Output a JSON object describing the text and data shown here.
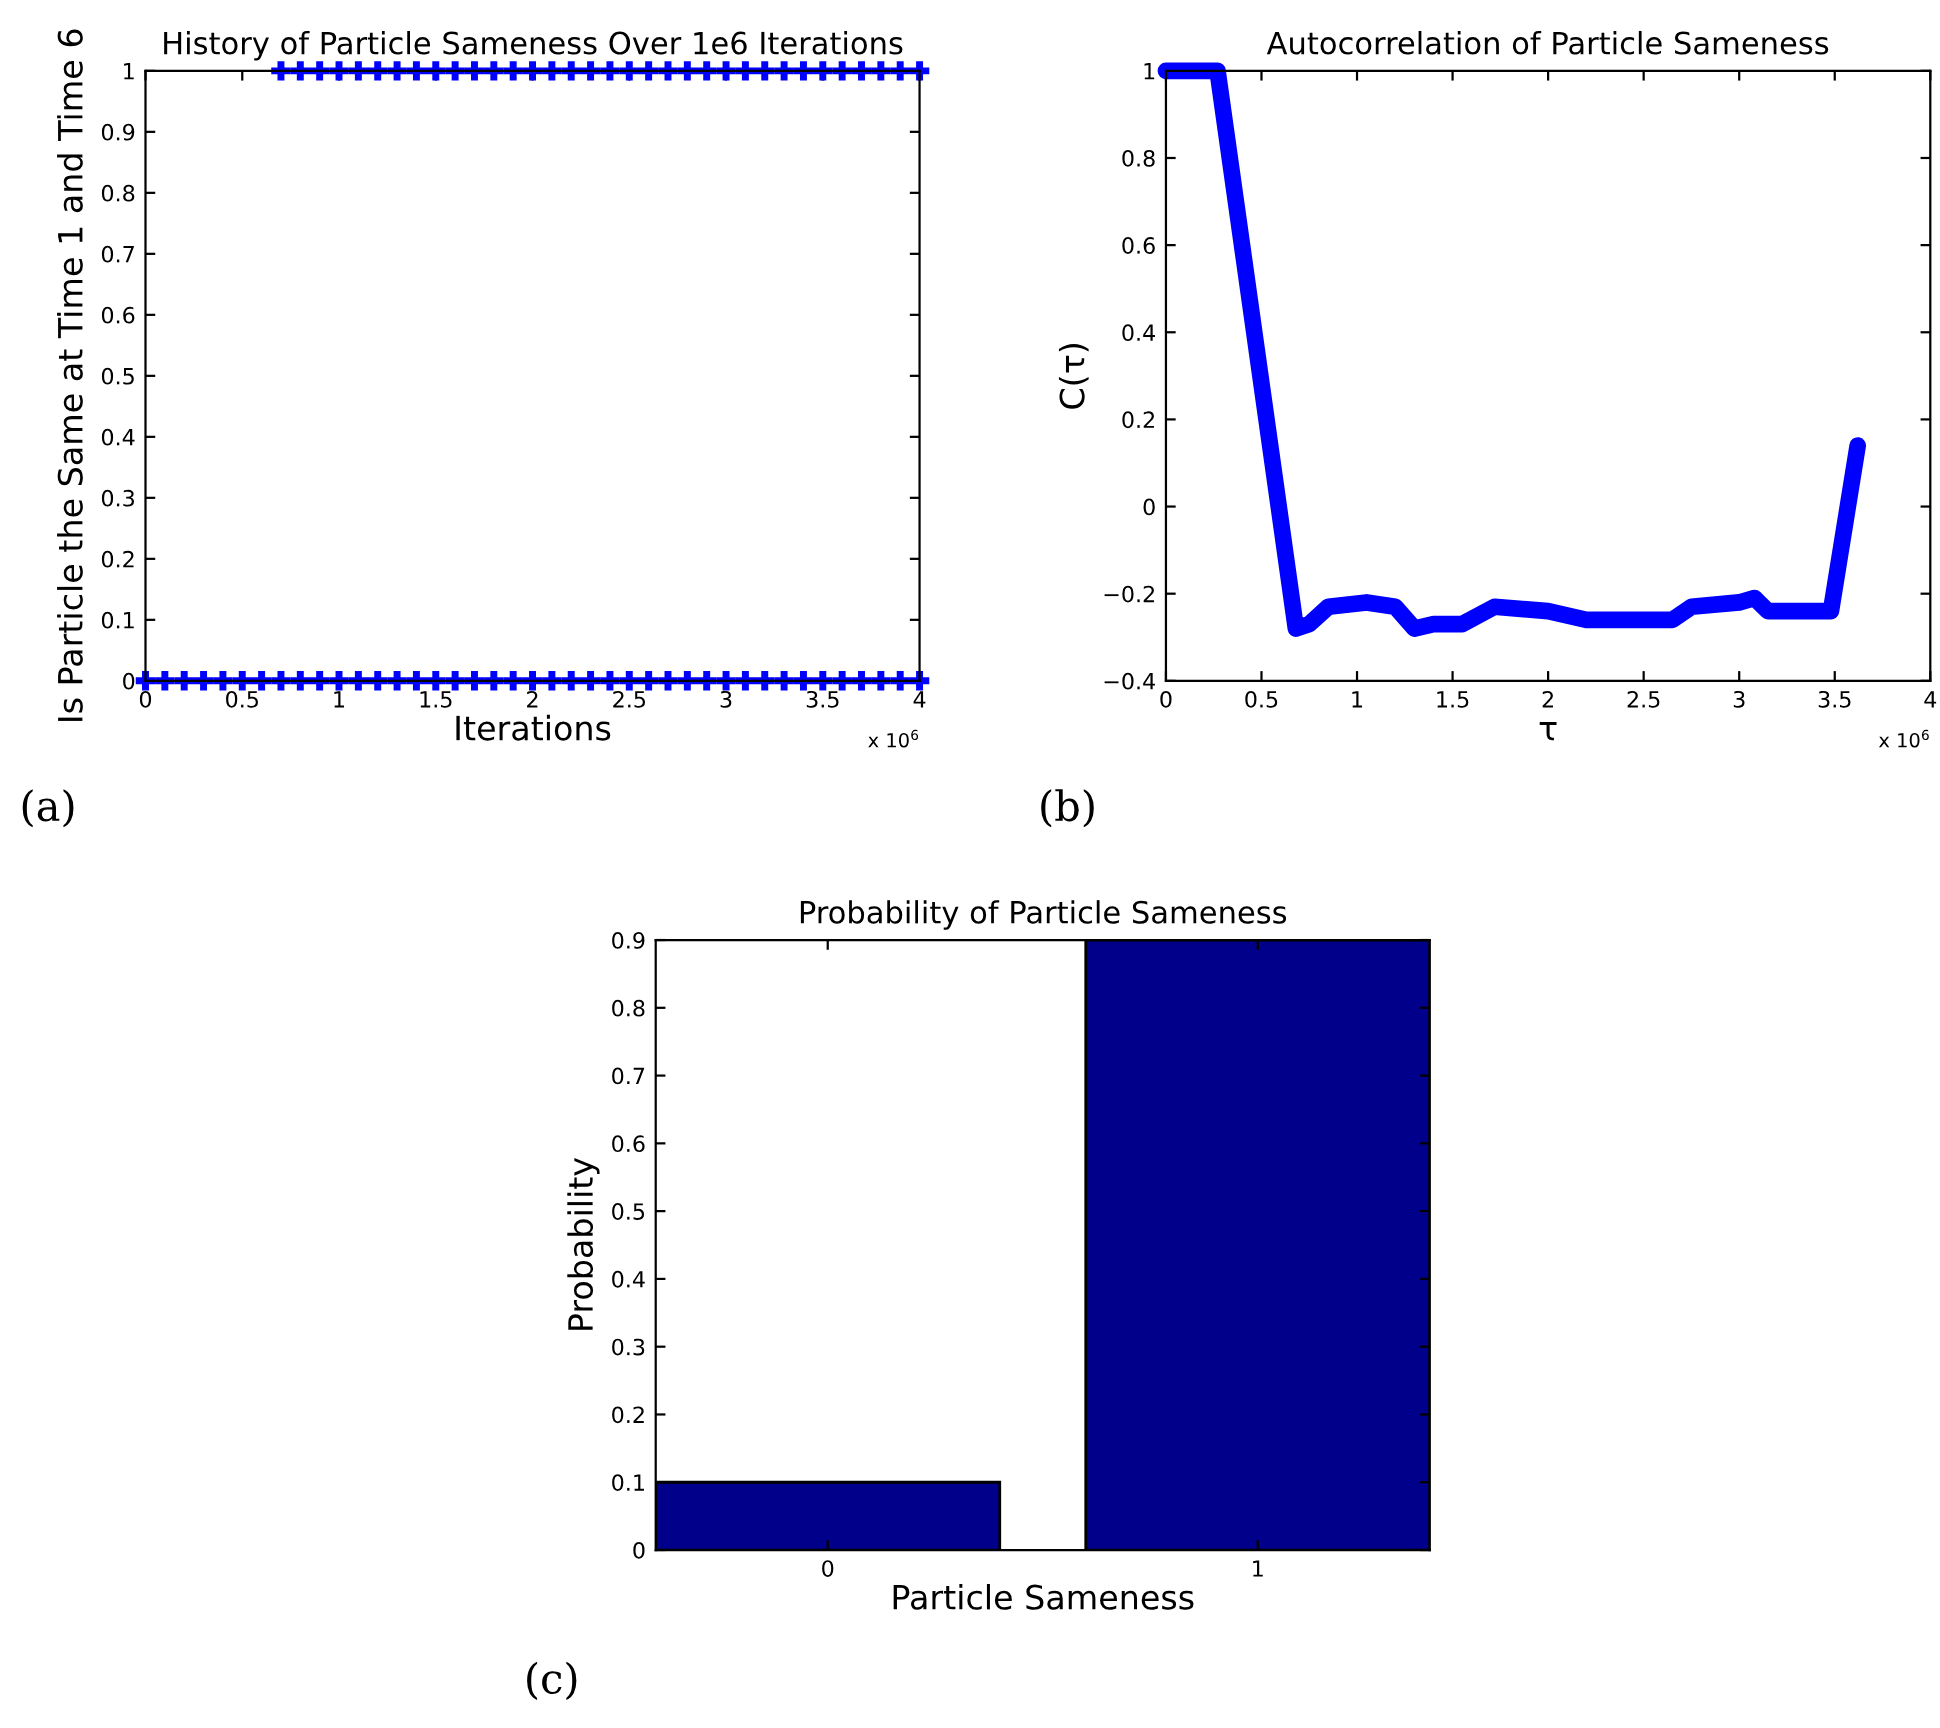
{
  "chart_data": [
    {
      "type": "scatter",
      "title": "History of Particle Sameness Over 1e6 Iterations",
      "xlabel": "Iterations",
      "ylabel": "Is Particle the Same at Time 1 and Time 6",
      "marker": "cross",
      "grid": false,
      "legend": false,
      "xlim": [
        0,
        4
      ],
      "xticks": [
        0,
        0.5,
        1,
        1.5,
        2,
        2.5,
        3,
        3.5,
        4
      ],
      "ylim": [
        0,
        1
      ],
      "yticks": [
        0,
        0.1,
        0.2,
        0.3,
        0.4,
        0.5,
        0.6,
        0.7,
        0.8,
        0.9,
        1
      ],
      "series": [
        {
          "color": "#0000ff",
          "x": [
            0,
            0.1,
            0.2,
            0.3,
            0.4,
            0.5,
            0.6,
            0.7,
            0.8,
            0.9,
            1,
            1.1,
            1.2,
            1.3,
            1.4,
            1.5,
            1.6,
            1.7,
            1.8,
            1.9,
            2,
            2.1,
            2.2,
            2.3,
            2.4,
            2.5,
            2.6,
            2.7,
            2.8,
            2.9,
            3,
            3.1,
            3.2,
            3.3,
            3.4,
            3.5,
            3.6,
            3.7,
            3.8,
            3.9,
            4
          ],
          "values": [
            0,
            0,
            0,
            0,
            0,
            0,
            0,
            0,
            0,
            0,
            0,
            0,
            0,
            0,
            0,
            0,
            0,
            0,
            0,
            0,
            0,
            0,
            0,
            0,
            0,
            0,
            0,
            0,
            0,
            0,
            0,
            0,
            0,
            0,
            0,
            0,
            0,
            0,
            0,
            0,
            0
          ]
        },
        {
          "color": "#0000ff",
          "x": [
            0.7,
            0.8,
            0.9,
            1,
            1.1,
            1.2,
            1.3,
            1.4,
            1.5,
            1.6,
            1.7,
            1.8,
            1.9,
            2,
            2.1,
            2.2,
            2.3,
            2.4,
            2.5,
            2.6,
            2.7,
            2.8,
            2.9,
            3,
            3.1,
            3.2,
            3.3,
            3.4,
            3.5,
            3.6,
            3.7,
            3.8,
            3.9,
            4
          ],
          "values": [
            1,
            1,
            1,
            1,
            1,
            1,
            1,
            1,
            1,
            1,
            1,
            1,
            1,
            1,
            1,
            1,
            1,
            1,
            1,
            1,
            1,
            1,
            1,
            1,
            1,
            1,
            1,
            1,
            1,
            1,
            1,
            1,
            1,
            1
          ]
        }
      ],
      "annotations": [
        "x 10$^{6}$",
        "(a)"
      ]
    },
    {
      "type": "line",
      "title": "Autocorrelation of Particle Sameness",
      "xlabel": "τ",
      "ylabel": "C(τ)",
      "grid": false,
      "legend": false,
      "marker": "none",
      "line_style": "solid",
      "xlim": [
        0,
        4
      ],
      "xticks": [
        0,
        0.5,
        1,
        1.5,
        2,
        2.5,
        3,
        3.5,
        4
      ],
      "ylim": [
        -0.4,
        1
      ],
      "yticks": [
        {
          "value": -0.4,
          "label": "−0.4"
        },
        {
          "value": -0.2,
          "label": "−0.2"
        },
        0,
        0.2,
        0.4,
        0.6,
        0.8,
        1
      ],
      "series": [
        {
          "color": "#0000ff",
          "x": [
            0,
            0.27,
            0.68,
            0.75,
            0.85,
            1.05,
            1.2,
            1.3,
            1.4,
            1.55,
            1.72,
            2.0,
            2.2,
            2.4,
            2.65,
            2.75,
            3.0,
            3.08,
            3.15,
            3.48,
            3.62
          ],
          "values": [
            1,
            1,
            -0.28,
            -0.27,
            -0.23,
            -0.22,
            -0.23,
            -0.28,
            -0.27,
            -0.27,
            -0.23,
            -0.24,
            -0.26,
            -0.26,
            -0.26,
            -0.23,
            -0.22,
            -0.21,
            -0.24,
            -0.24,
            0.14
          ]
        }
      ],
      "annotations": [
        "x 10$^{6}$",
        "(b)"
      ]
    },
    {
      "type": "bar",
      "title": "Probability of Particle Sameness",
      "xlabel": "Particle Sameness",
      "ylabel": "Probability",
      "grid": false,
      "legend": false,
      "categories": [
        "0",
        "1"
      ],
      "values": [
        0.1,
        0.9
      ],
      "color": "#00008b",
      "ylim": [
        0,
        0.9
      ],
      "yticks": [
        0,
        0.1,
        0.2,
        0.3,
        0.4,
        0.5,
        0.6,
        0.7,
        0.8,
        0.9
      ],
      "annotations": [
        "(c)"
      ]
    }
  ]
}
